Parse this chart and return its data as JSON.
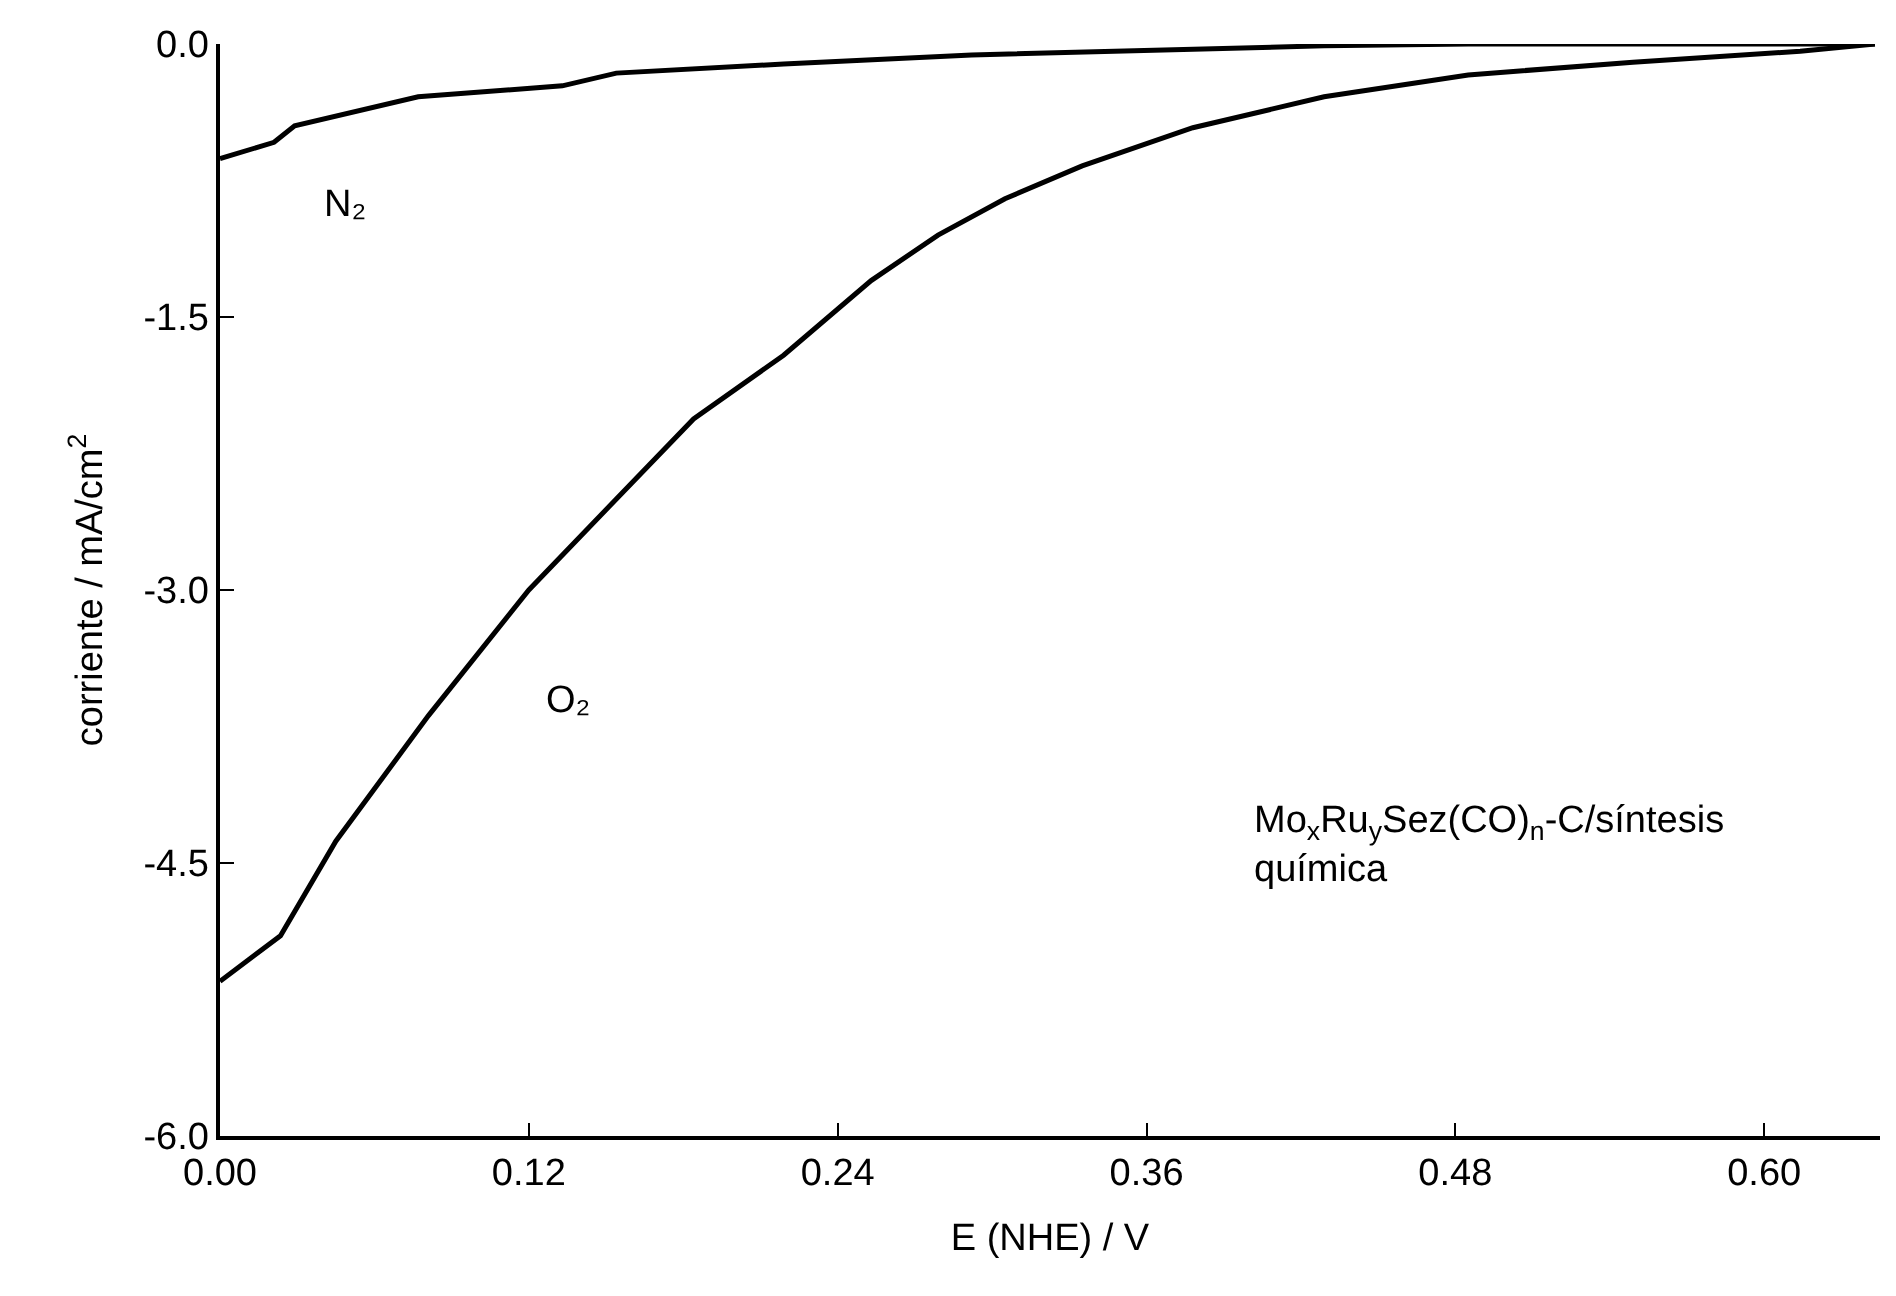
{
  "chart_data": {
    "type": "line",
    "xlabel": "E (NHE) / V",
    "ylabel": "corriente / mA/cm$^{2}$",
    "xlim": [
      0,
      0.645
    ],
    "xticks": [
      {
        "value": 0,
        "label": "0.00"
      },
      0.12,
      0.24,
      0.36,
      0.48,
      {
        "value": 0.6,
        "label": "0.60"
      }
    ],
    "ylim": [
      -6,
      0
    ],
    "yticks": [
      {
        "value": -6,
        "label": "-6.0"
      },
      -4.5,
      {
        "value": -3,
        "label": "-3.0"
      },
      -1.5,
      {
        "value": 0,
        "label": "0.0"
      }
    ],
    "grid": false,
    "legend": false,
    "marker": "none",
    "line_style": "solid",
    "series": [
      {
        "name": "N₂",
        "color": "#000000",
        "x": [
          0,
          0.021,
          0.029,
          0.077,
          0.133,
          0.154,
          0.219,
          0.292,
          0.429,
          0.485,
          0.643
        ],
        "values": [
          -0.63,
          -0.54,
          -0.45,
          -0.29,
          -0.23,
          -0.16,
          -0.11,
          -0.06,
          -0.01,
          0.0,
          0.0
        ]
      },
      {
        "name": "O₂",
        "color": "#000000",
        "x": [
          0,
          0.0235,
          0.045,
          0.081,
          0.12,
          0.154,
          0.184,
          0.219,
          0.253,
          0.279,
          0.305,
          0.335,
          0.378,
          0.429,
          0.485,
          0.549,
          0.614,
          0.643
        ],
        "values": [
          -5.15,
          -4.9,
          -4.38,
          -3.69,
          -3.0,
          -2.5,
          -2.06,
          -1.71,
          -1.3,
          -1.05,
          -0.85,
          -0.67,
          -0.46,
          -0.29,
          -0.17,
          -0.1,
          -0.04,
          0.0
        ]
      }
    ],
    "annotations": [
      "Mo$_{x}$Ru$_{y}$Sez(CO)$_{n}$-C/síntesis\nquímica"
    ]
  }
}
